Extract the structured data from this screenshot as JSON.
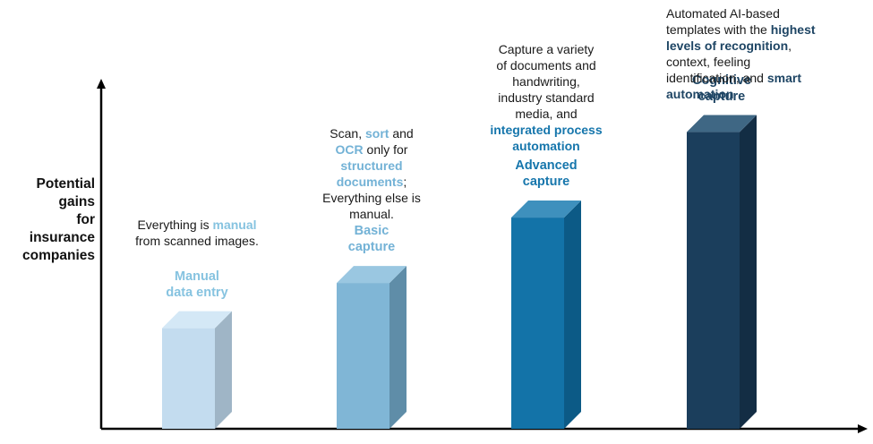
{
  "chart_data": {
    "type": "bar",
    "style": "3d-columns",
    "ylabel": "Potential gains for insurance companies",
    "ylabel_lines": [
      "Potential",
      "gains",
      "for",
      "insurance",
      "companies"
    ],
    "categories": [
      "Manual data entry",
      "Basic capture",
      "Advanced capture",
      "Cognitive capture"
    ],
    "values": [
      1,
      1.45,
      2.1,
      2.95
    ],
    "value_scale": "relative (no axis ticks shown)",
    "ylim": [
      0,
      3.4
    ],
    "grid": false,
    "legend": "none"
  },
  "stages": [
    {
      "title_lines": [
        "Manual",
        "data entry"
      ],
      "front_color": "#c3dcef",
      "top_color": "#d4e8f6",
      "side_color": "#9fb5c6",
      "title_color": "#86c3e0",
      "desc_align": "center",
      "desc": [
        [
          {
            "t": "Everything is ",
            "c": ""
          },
          {
            "t": "manual",
            "c": "#86c3e0",
            "b": true
          }
        ],
        [
          {
            "t": "from scanned images.",
            "c": ""
          }
        ]
      ]
    },
    {
      "title_lines": [
        "Basic",
        "capture"
      ],
      "front_color": "#80b6d6",
      "top_color": "#9ac7e1",
      "side_color": "#5f8da8",
      "title_color": "#73b2d6",
      "desc_align": "center",
      "desc": [
        [
          {
            "t": "Scan, ",
            "c": ""
          },
          {
            "t": "sort",
            "c": "#73b2d6",
            "b": true
          },
          {
            "t": " and",
            "c": ""
          }
        ],
        [
          {
            "t": "OCR",
            "c": "#73b2d6",
            "b": true
          },
          {
            "t": " only for",
            "c": ""
          }
        ],
        [
          {
            "t": "structured",
            "c": "#73b2d6",
            "b": true
          }
        ],
        [
          {
            "t": "documents",
            "c": "#73b2d6",
            "b": true
          },
          {
            "t": ";",
            "c": ""
          }
        ],
        [
          {
            "t": "Everything else is",
            "c": ""
          }
        ],
        [
          {
            "t": "manual.",
            "c": ""
          }
        ]
      ]
    },
    {
      "title_lines": [
        "Advanced",
        "capture"
      ],
      "front_color": "#1373a8",
      "top_color": "#3e90bd",
      "side_color": "#0c5a86",
      "title_color": "#1676ac",
      "desc_align": "center",
      "desc": [
        [
          {
            "t": "Capture a variety",
            "c": ""
          }
        ],
        [
          {
            "t": "of documents and",
            "c": ""
          }
        ],
        [
          {
            "t": "handwriting,",
            "c": ""
          }
        ],
        [
          {
            "t": "industry standard",
            "c": ""
          }
        ],
        [
          {
            "t": "media, and",
            "c": ""
          }
        ],
        [
          {
            "t": "integrated process",
            "c": "#1676ac",
            "b": true
          }
        ],
        [
          {
            "t": "automation",
            "c": "#1676ac",
            "b": true
          }
        ]
      ]
    },
    {
      "title_lines": [
        "Cognitive",
        "capture"
      ],
      "front_color": "#1b3e5c",
      "top_color": "#3f6784",
      "side_color": "#132d44",
      "title_color": "#1e4564",
      "desc_align": "left",
      "desc": [
        [
          {
            "t": "Automated AI-based",
            "c": ""
          }
        ],
        [
          {
            "t": "templates with the ",
            "c": ""
          },
          {
            "t": "highest",
            "c": "#1e4564",
            "b": true
          }
        ],
        [
          {
            "t": "levels of recognition",
            "c": "#1e4564",
            "b": true
          },
          {
            "t": ",",
            "c": ""
          }
        ],
        [
          {
            "t": "context, feeling",
            "c": ""
          }
        ],
        [
          {
            "t": "identification, and ",
            "c": ""
          },
          {
            "t": "smart",
            "c": "#1e4564",
            "b": true
          }
        ],
        [
          {
            "t": "automation",
            "c": "#1e4564",
            "b": true
          }
        ]
      ]
    }
  ]
}
